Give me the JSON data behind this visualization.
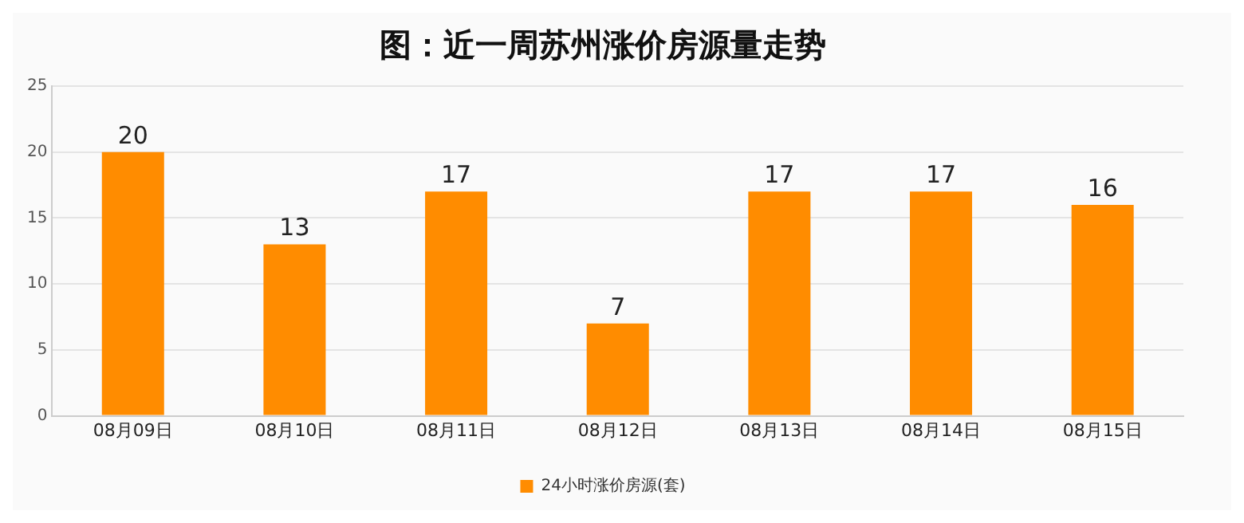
{
  "chart_data": {
    "type": "bar",
    "title": "图：近一周苏州涨价房源量走势",
    "categories": [
      "08月09日",
      "08月10日",
      "08月11日",
      "08月12日",
      "08月13日",
      "08月14日",
      "08月15日"
    ],
    "series": [
      {
        "name": "24小时涨价房源(套)",
        "color": "#ff8c00",
        "values": [
          20,
          13,
          17,
          7,
          17,
          17,
          16
        ]
      }
    ],
    "ylim": [
      0,
      25
    ],
    "yticks": [
      0,
      5,
      10,
      15,
      20,
      25
    ],
    "grid": "y",
    "legend": "bottom",
    "data_labels": true
  }
}
